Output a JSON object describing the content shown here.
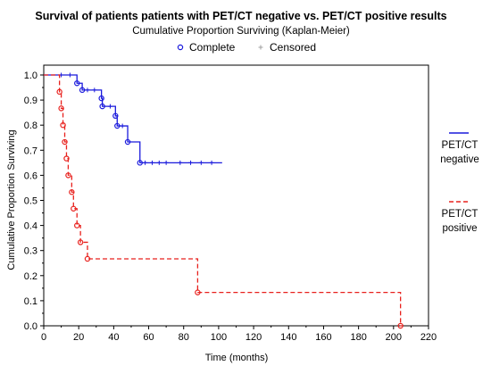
{
  "chart_data": {
    "type": "line",
    "title": "Survival of patients patients with PET/CT negative vs. PET/CT positive results",
    "subtitle": "Cumulative Proportion Surviving (Kaplan-Meier)",
    "xlabel": "Time (months)",
    "ylabel": "Cumulative Proportion Surviving",
    "xlim": [
      0,
      220
    ],
    "ylim": [
      0.0,
      1.05
    ],
    "x_ticks": [
      "0",
      "20",
      "40",
      "60",
      "80",
      "100",
      "120",
      "140",
      "160",
      "180",
      "200",
      "220"
    ],
    "y_ticks": [
      "0.0",
      "0.1",
      "0.2",
      "0.3",
      "0.4",
      "0.5",
      "0.6",
      "0.7",
      "0.8",
      "0.9",
      "1.0"
    ],
    "marker_legend": [
      {
        "label": "Complete",
        "marker": "open-circle"
      },
      {
        "label": "Censored",
        "marker": "plus"
      }
    ],
    "series": [
      {
        "name": "PET/CT negative",
        "legend_lines": [
          "PET/CT",
          "negative"
        ],
        "color": "#1a1adc",
        "dash": "solid",
        "start": 0,
        "events": [
          [
            19,
            0.967
          ],
          [
            22,
            0.94
          ],
          [
            33,
            0.907
          ],
          [
            33.5,
            0.875
          ],
          [
            41,
            0.837
          ],
          [
            42,
            0.797
          ],
          [
            48,
            0.733
          ],
          [
            55,
            0.65
          ]
        ],
        "censored": [
          [
            10,
            1.0
          ],
          [
            15,
            1.0
          ],
          [
            25,
            0.94
          ],
          [
            29,
            0.94
          ],
          [
            38,
            0.875
          ],
          [
            45,
            0.797
          ],
          [
            58,
            0.65
          ],
          [
            62,
            0.65
          ],
          [
            66,
            0.65
          ],
          [
            70,
            0.65
          ],
          [
            78,
            0.65
          ],
          [
            84,
            0.65
          ],
          [
            90,
            0.65
          ],
          [
            96,
            0.65
          ]
        ],
        "end": 102
      },
      {
        "name": "PET/CT positive",
        "legend_lines": [
          "PET/CT",
          "positive"
        ],
        "color": "#e8211d",
        "dash": "dashed",
        "start": 0,
        "events": [
          [
            9,
            0.933
          ],
          [
            10,
            0.867
          ],
          [
            11,
            0.8
          ],
          [
            12,
            0.733
          ],
          [
            13,
            0.667
          ],
          [
            14,
            0.6
          ],
          [
            16,
            0.533
          ],
          [
            17,
            0.467
          ],
          [
            19,
            0.4
          ],
          [
            21,
            0.333
          ],
          [
            25,
            0.267
          ],
          [
            88,
            0.133
          ],
          [
            204,
            0.0
          ]
        ],
        "censored": [],
        "end": 205
      }
    ],
    "grid": false,
    "legend_position": "top-center (markers), right (series)"
  }
}
